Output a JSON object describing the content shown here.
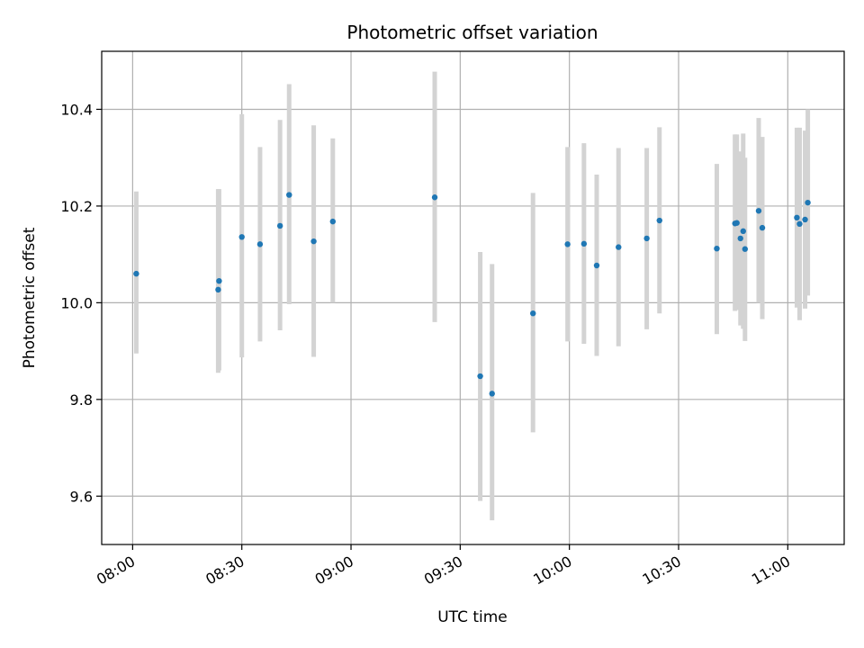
{
  "chart_data": {
    "type": "scatter",
    "title": "Photometric offset variation",
    "xlabel": "UTC time",
    "ylabel": "Photometric offset",
    "x_ticks": [
      "08:00",
      "08:30",
      "09:00",
      "09:30",
      "10:00",
      "10:30",
      "11:00"
    ],
    "y_ticks": [
      "9.6",
      "9.8",
      "10.0",
      "10.2",
      "10.4"
    ],
    "xlim": [
      "07:51:30",
      "11:15:30"
    ],
    "ylim": [
      9.5,
      10.52
    ],
    "grid": true,
    "colors": {
      "point": "#1f77b4",
      "errorbar": "#d3d3d3",
      "grid": "#b0b0b0"
    },
    "points": [
      {
        "t": "08:01",
        "y": 10.06,
        "lo": 9.895,
        "hi": 10.23
      },
      {
        "t": "08:23:30",
        "y": 10.027,
        "lo": 9.855,
        "hi": 10.235
      },
      {
        "t": "08:23:45",
        "y": 10.045,
        "lo": 9.86,
        "hi": 10.235
      },
      {
        "t": "08:30",
        "y": 10.136,
        "lo": 9.887,
        "hi": 10.39
      },
      {
        "t": "08:35",
        "y": 10.121,
        "lo": 9.92,
        "hi": 10.322
      },
      {
        "t": "08:40:30",
        "y": 10.159,
        "lo": 9.943,
        "hi": 10.378
      },
      {
        "t": "08:43",
        "y": 10.223,
        "lo": 9.997,
        "hi": 10.452
      },
      {
        "t": "08:49:45",
        "y": 10.127,
        "lo": 9.888,
        "hi": 10.367
      },
      {
        "t": "08:55",
        "y": 10.168,
        "lo": 10.0,
        "hi": 10.34
      },
      {
        "t": "09:23",
        "y": 10.218,
        "lo": 9.96,
        "hi": 10.478
      },
      {
        "t": "09:35:30",
        "y": 9.848,
        "lo": 9.59,
        "hi": 10.105
      },
      {
        "t": "09:38:45",
        "y": 9.812,
        "lo": 9.55,
        "hi": 10.08
      },
      {
        "t": "09:50",
        "y": 9.978,
        "lo": 9.732,
        "hi": 10.227
      },
      {
        "t": "09:59:30",
        "y": 10.121,
        "lo": 9.92,
        "hi": 10.322
      },
      {
        "t": "10:04",
        "y": 10.122,
        "lo": 9.915,
        "hi": 10.33
      },
      {
        "t": "10:07:30",
        "y": 10.077,
        "lo": 9.89,
        "hi": 10.265
      },
      {
        "t": "10:13:30",
        "y": 10.115,
        "lo": 9.91,
        "hi": 10.32
      },
      {
        "t": "10:21:15",
        "y": 10.133,
        "lo": 9.945,
        "hi": 10.32
      },
      {
        "t": "10:24:45",
        "y": 10.17,
        "lo": 9.978,
        "hi": 10.363
      },
      {
        "t": "10:40:30",
        "y": 10.112,
        "lo": 9.935,
        "hi": 10.287
      },
      {
        "t": "10:45:30",
        "y": 10.164,
        "lo": 9.983,
        "hi": 10.348
      },
      {
        "t": "10:46",
        "y": 10.165,
        "lo": 9.985,
        "hi": 10.348
      },
      {
        "t": "10:47",
        "y": 10.133,
        "lo": 9.953,
        "hi": 10.313
      },
      {
        "t": "10:47:45",
        "y": 10.148,
        "lo": 9.946,
        "hi": 10.35
      },
      {
        "t": "10:48:15",
        "y": 10.111,
        "lo": 9.921,
        "hi": 10.3
      },
      {
        "t": "10:52",
        "y": 10.19,
        "lo": 10.0,
        "hi": 10.382
      },
      {
        "t": "10:53",
        "y": 10.155,
        "lo": 9.966,
        "hi": 10.343
      },
      {
        "t": "11:02:30",
        "y": 10.176,
        "lo": 9.99,
        "hi": 10.362
      },
      {
        "t": "11:03:15",
        "y": 10.163,
        "lo": 9.964,
        "hi": 10.362
      },
      {
        "t": "11:04:45",
        "y": 10.172,
        "lo": 9.988,
        "hi": 10.356
      },
      {
        "t": "11:05:30",
        "y": 10.207,
        "lo": 10.015,
        "hi": 10.4
      }
    ]
  }
}
